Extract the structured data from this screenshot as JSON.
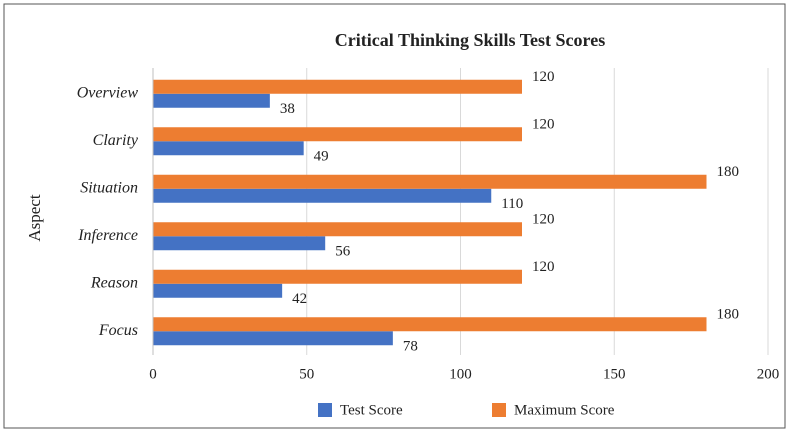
{
  "chart_data": {
    "type": "bar",
    "orientation": "horizontal",
    "title": "Critical Thinking Skills Test Scores",
    "y_label": "Aspect",
    "categories": [
      "Overview",
      "Clarity",
      "Situation",
      "Inference",
      "Reason",
      "Focus"
    ],
    "series": [
      {
        "name": "Test Score",
        "color": "#4472c4",
        "values": [
          38,
          49,
          110,
          56,
          42,
          78
        ]
      },
      {
        "name": "Maximum Score",
        "color": "#ed7d31",
        "values": [
          120,
          120,
          180,
          120,
          120,
          180
        ]
      }
    ],
    "xlim": [
      0,
      200
    ],
    "xticks": [
      0,
      50,
      100,
      150,
      200
    ],
    "grid": true,
    "legend": "bottom"
  }
}
